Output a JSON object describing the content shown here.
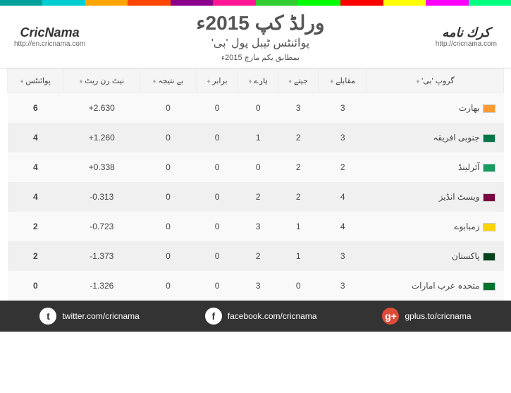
{
  "topbar_colors": [
    "#00a19a",
    "#00ced1",
    "#ffa500",
    "#ff4500",
    "#8b008b",
    "#ff1493",
    "#32cd32",
    "#00ff00",
    "#ff0000",
    "#ffff00",
    "#ff00ff",
    "#00ff7f"
  ],
  "header": {
    "left_logo": "CricNama",
    "left_url": "http://en.cricnama.com",
    "right_logo": "كرك نامه",
    "right_url": "http://cricnama.com",
    "main_title": "ورلڈ کپ 2015ء",
    "sub_title": "پوائنٹس ٹیبل پول 'بی'",
    "date_line": "بمطابق یکم مارچ 2015ء"
  },
  "columns": [
    "گروپ 'بی'",
    "مقابلے",
    "جیتے",
    "ہارے",
    "برابر",
    "بے نتیجہ",
    "نیٹ رن ریٹ",
    "پوائنٹس"
  ],
  "rows": [
    {
      "team": "بھارت",
      "flag": "#ff9933",
      "m": "3",
      "w": "3",
      "l": "0",
      "t": "0",
      "nr": "0",
      "nrr": "2.630+",
      "pts": "6"
    },
    {
      "team": "جنوبی افریقہ",
      "flag": "#007749",
      "m": "3",
      "w": "2",
      "l": "1",
      "t": "0",
      "nr": "0",
      "nrr": "1.260+",
      "pts": "4"
    },
    {
      "team": "آئرلینڈ",
      "flag": "#169b62",
      "m": "2",
      "w": "2",
      "l": "0",
      "t": "0",
      "nr": "0",
      "nrr": "0.338+",
      "pts": "4"
    },
    {
      "team": "ویسٹ انڈیز",
      "flag": "#7b0041",
      "m": "4",
      "w": "2",
      "l": "2",
      "t": "0",
      "nr": "0",
      "nrr": "0.313-",
      "pts": "4"
    },
    {
      "team": "زمبابوے",
      "flag": "#ffd200",
      "m": "4",
      "w": "1",
      "l": "3",
      "t": "0",
      "nr": "0",
      "nrr": "0.723-",
      "pts": "2"
    },
    {
      "team": "پاکستان",
      "flag": "#01411c",
      "m": "3",
      "w": "1",
      "l": "2",
      "t": "0",
      "nr": "0",
      "nrr": "1.373-",
      "pts": "2"
    },
    {
      "team": "متحدہ عرب امارات",
      "flag": "#00732f",
      "m": "3",
      "w": "0",
      "l": "3",
      "t": "0",
      "nr": "0",
      "nrr": "1.326-",
      "pts": "0"
    }
  ],
  "footer": {
    "twitter": "twitter.com/cricnama",
    "facebook": "facebook.com/cricnama",
    "gplus": "gplus.to/cricnama"
  }
}
